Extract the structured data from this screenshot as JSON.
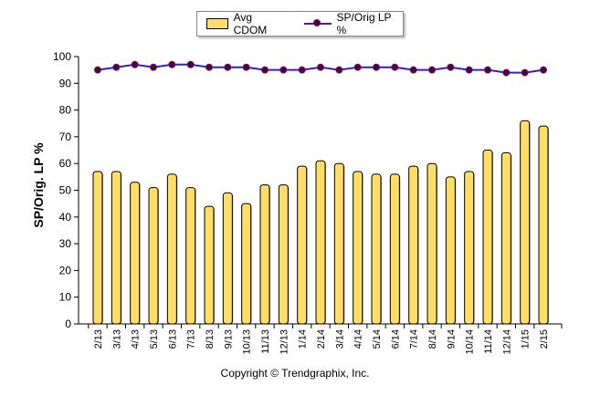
{
  "chart_data": {
    "type": "bar",
    "categories": [
      "2/13",
      "3/13",
      "4/13",
      "5/13",
      "6/13",
      "7/13",
      "8/13",
      "9/13",
      "10/13",
      "11/13",
      "12/13",
      "1/14",
      "2/14",
      "3/14",
      "4/14",
      "5/14",
      "6/14",
      "7/14",
      "8/14",
      "9/14",
      "10/14",
      "11/14",
      "12/14",
      "1/15",
      "2/15"
    ],
    "series": [
      {
        "name": "Avg CDOM",
        "type": "bar",
        "color": "#ffdd66",
        "values": [
          57,
          57,
          53,
          51,
          56,
          51,
          44,
          49,
          45,
          52,
          52,
          59,
          61,
          60,
          57,
          56,
          56,
          59,
          60,
          55,
          57,
          65,
          64,
          76,
          74
        ]
      },
      {
        "name": "SP/Orig LP %",
        "type": "line",
        "color": "#3a1ccc",
        "marker_color": "#660000",
        "values": [
          95,
          96,
          97,
          96,
          97,
          97,
          96,
          96,
          96,
          95,
          95,
          95,
          96,
          95,
          96,
          96,
          96,
          95,
          95,
          96,
          95,
          95,
          94,
          94,
          95
        ]
      }
    ],
    "ylabel": "SP/Orig. LP %",
    "ylim": [
      0,
      100
    ],
    "yticks": [
      0,
      10,
      20,
      30,
      40,
      50,
      60,
      70,
      80,
      90,
      100
    ],
    "grid": false,
    "legend_position": "top"
  },
  "copyright": "Copyright © Trendgraphix, Inc."
}
